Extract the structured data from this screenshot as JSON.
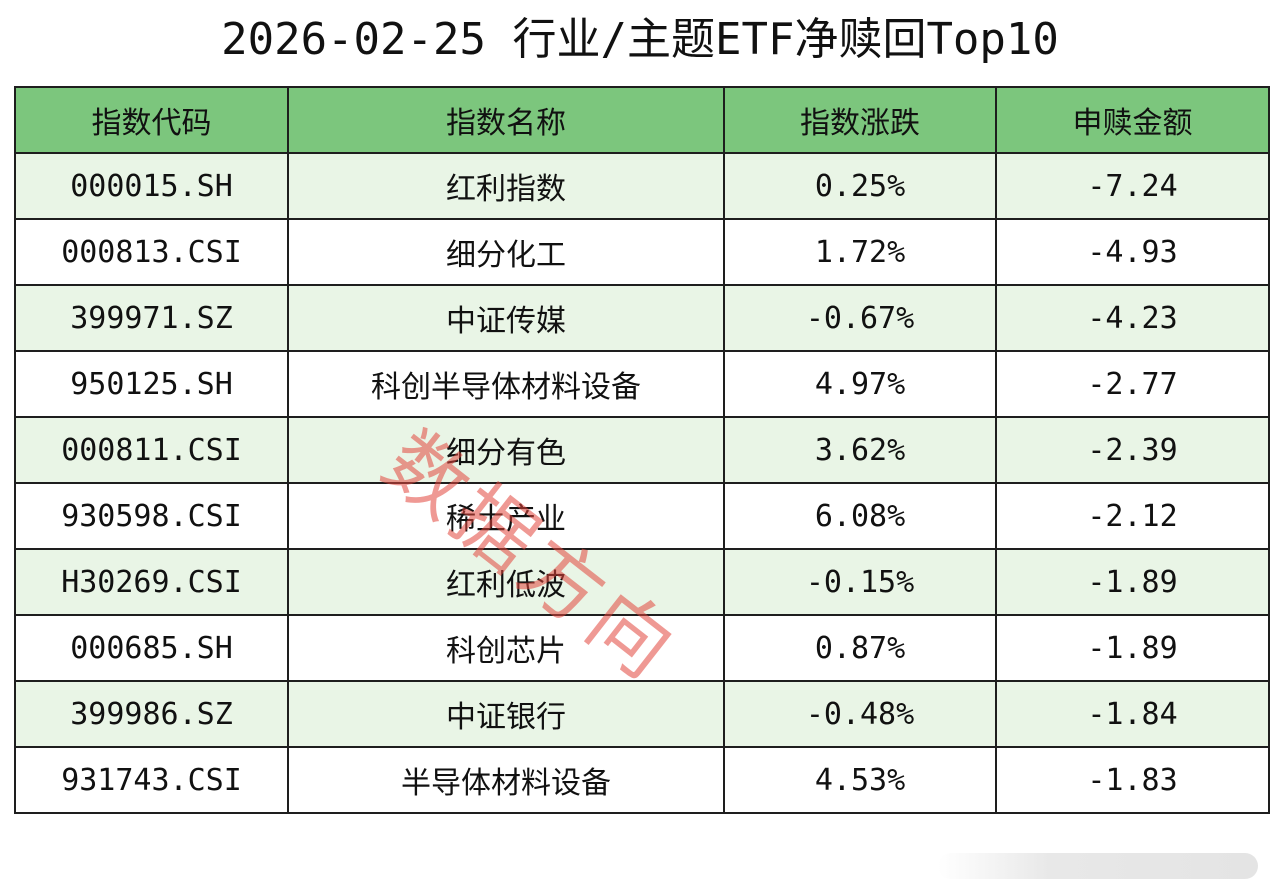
{
  "title": "2026-02-25 行业/主题ETF净赎回Top10",
  "columns": [
    "指数代码",
    "指数名称",
    "指数涨跌",
    "申赎金额"
  ],
  "rows": [
    {
      "code": "000015.SH",
      "name": "红利指数",
      "change": "0.25%",
      "amount": "-7.24"
    },
    {
      "code": "000813.CSI",
      "name": "细分化工",
      "change": "1.72%",
      "amount": "-4.93"
    },
    {
      "code": "399971.SZ",
      "name": "中证传媒",
      "change": "-0.67%",
      "amount": "-4.23"
    },
    {
      "code": "950125.SH",
      "name": "科创半导体材料设备",
      "change": "4.97%",
      "amount": "-2.77"
    },
    {
      "code": "000811.CSI",
      "name": "细分有色",
      "change": "3.62%",
      "amount": "-2.39"
    },
    {
      "code": "930598.CSI",
      "name": "稀土产业",
      "change": "6.08%",
      "amount": "-2.12"
    },
    {
      "code": "H30269.CSI",
      "name": "红利低波",
      "change": "-0.15%",
      "amount": "-1.89"
    },
    {
      "code": "000685.SH",
      "name": "科创芯片",
      "change": "0.87%",
      "amount": "-1.89"
    },
    {
      "code": "399986.SZ",
      "name": "中证银行",
      "change": "-0.48%",
      "amount": "-1.84"
    },
    {
      "code": "931743.CSI",
      "name": "半导体材料设备",
      "change": "4.53%",
      "amount": "-1.83"
    }
  ],
  "watermark": "数据方向",
  "colors": {
    "header_bg": "#7cc67d",
    "row_alt_bg": "#e9f5e6",
    "row_bg": "#ffffff",
    "border": "#1e1e1e",
    "watermark": "#e1463c"
  }
}
